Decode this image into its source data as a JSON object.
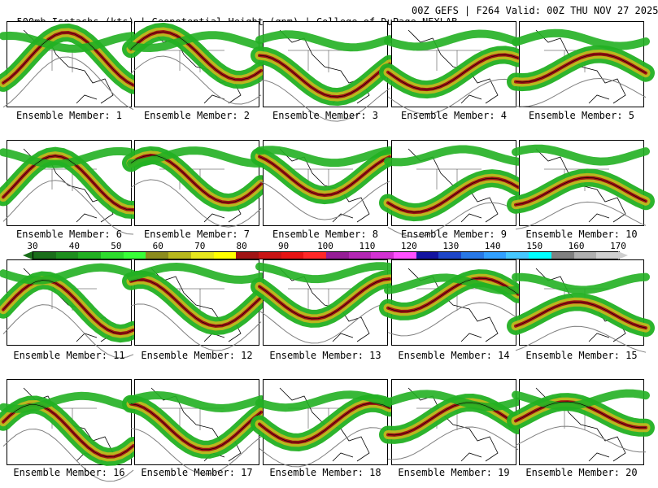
{
  "header": {
    "left": "500mb Isotachs (kts) | Geopotential Height (gpm) | College of DuPage NEXLAB",
    "right": "00Z GEFS | F264 Valid: 00Z THU NOV 27 2025"
  },
  "members": [
    "Ensemble Member: 1",
    "Ensemble Member: 2",
    "Ensemble Member: 3",
    "Ensemble Member: 4",
    "Ensemble Member: 5",
    "Ensemble Member: 6",
    "Ensemble Member: 7",
    "Ensemble Member: 8",
    "Ensemble Member: 9",
    "Ensemble Member: 10",
    "Ensemble Member: 11",
    "Ensemble Member: 12",
    "Ensemble Member: 13",
    "Ensemble Member: 14",
    "Ensemble Member: 15",
    "Ensemble Member: 16",
    "Ensemble Member: 17",
    "Ensemble Member: 18",
    "Ensemble Member: 19",
    "Ensemble Member: 20"
  ],
  "colorbar": {
    "ticks": [
      "30",
      "40",
      "50",
      "60",
      "70",
      "80",
      "90",
      "100",
      "110",
      "120",
      "130",
      "140",
      "150",
      "160",
      "170"
    ],
    "colors": [
      "#1a6e1a",
      "#1e8f1e",
      "#22b022",
      "#2edc2e",
      "#38ff38",
      "#8c8c1e",
      "#b8b81e",
      "#e6e61e",
      "#ffff00",
      "#a01414",
      "#c81414",
      "#e61414",
      "#ff2828",
      "#961e96",
      "#b428b4",
      "#d232d2",
      "#ff50ff",
      "#1414a0",
      "#1e46c8",
      "#2878e6",
      "#32a0ff",
      "#46c8ff",
      "#00ffff",
      "#808080",
      "#b0b0b0",
      "#d0d0d0"
    ]
  },
  "jet_colors": {
    "green": "#22b022",
    "olive": "#b8b81e",
    "darkred": "#a01414",
    "purple": "#b428b4"
  }
}
